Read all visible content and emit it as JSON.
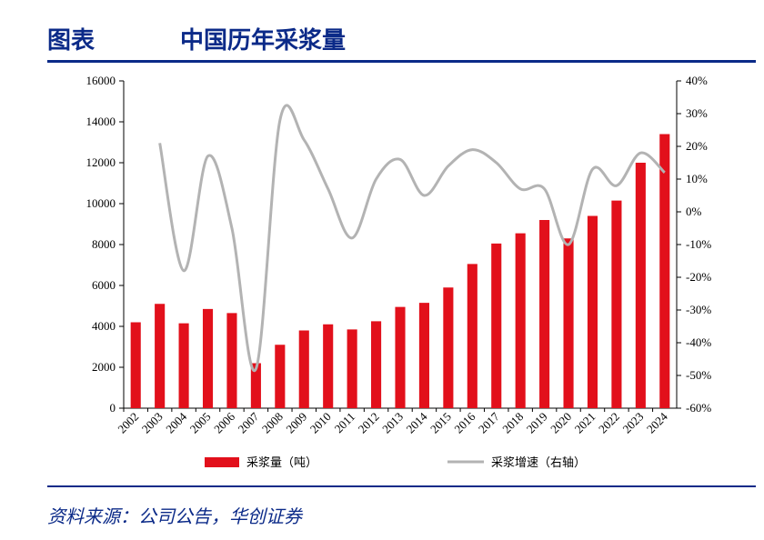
{
  "header": {
    "figure_label": "图表",
    "title": "中国历年采浆量"
  },
  "source": "资料来源：公司公告，华创证券",
  "chart_data": {
    "type": "bar",
    "categories": [
      "2002",
      "2003",
      "2004",
      "2005",
      "2006",
      "2007",
      "2008",
      "2009",
      "2010",
      "2011",
      "2012",
      "2013",
      "2014",
      "2015",
      "2016",
      "2017",
      "2018",
      "2019",
      "2020",
      "2021",
      "2022",
      "2023",
      "2024"
    ],
    "series": [
      {
        "name": "采浆量（吨）",
        "type": "bar",
        "axis": "left",
        "color": "#e2101b",
        "values": [
          4200,
          5100,
          4150,
          4850,
          4650,
          2200,
          3100,
          3800,
          4100,
          3850,
          4250,
          4950,
          5150,
          5900,
          7050,
          8050,
          8550,
          9200,
          8300,
          9400,
          10150,
          12000,
          13400
        ]
      },
      {
        "name": "采浆增速（右轴）",
        "type": "line",
        "axis": "right",
        "color": "#b3b3b3",
        "values": [
          null,
          21,
          -18,
          17,
          -5,
          -48,
          28,
          22,
          7,
          -8,
          10,
          16,
          5,
          14,
          19,
          15,
          7,
          7,
          -10,
          13,
          8,
          18,
          12
        ]
      }
    ],
    "y_left": {
      "min": 0,
      "max": 16000,
      "ticks": [
        "0",
        "2000",
        "4000",
        "6000",
        "8000",
        "10000",
        "12000",
        "14000",
        "16000"
      ]
    },
    "y_right": {
      "min": -60,
      "max": 40,
      "ticks": [
        "-60%",
        "-50%",
        "-40%",
        "-30%",
        "-20%",
        "-10%",
        "0%",
        "10%",
        "20%",
        "30%",
        "40%"
      ]
    },
    "legend_placement": "bottom",
    "grid": false
  }
}
